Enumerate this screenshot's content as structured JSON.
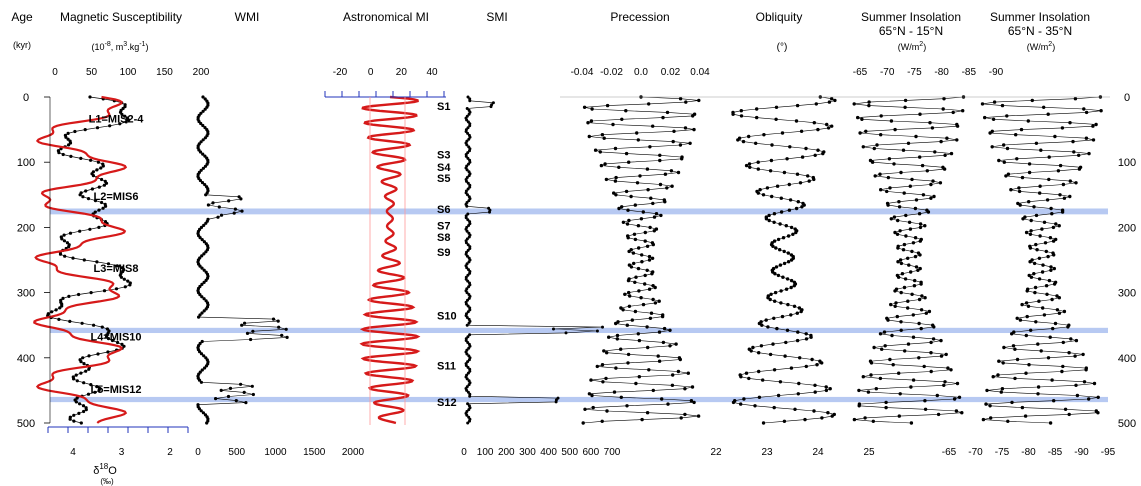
{
  "figure": {
    "age_label": "Age",
    "age_unit": "(kyr)",
    "age_ticks": [
      "0",
      "100",
      "200",
      "300",
      "400",
      "500"
    ],
    "band_color": "#aabff0",
    "red_color": "#d61a1a",
    "axis_blue": "#2233bb"
  },
  "chart_data": [
    {
      "type": "line",
      "title": "Magnetic Susceptibility",
      "unit_text": "(10",
      "unit_exp": "-8",
      "unit_rest": ", m",
      "unit_exp2": "3",
      "unit_tail": ".kg",
      "unit_exp3": "-1",
      "unit_close": ")",
      "top_ticks": [
        "0",
        "50",
        "100",
        "150",
        "200"
      ],
      "bottom_ticks": [
        "4",
        "3",
        "2"
      ],
      "bottom_label": "δ",
      "bottom_label_sup": "18",
      "bottom_label_tail": "O",
      "bottom_unit": "(‰)",
      "series": [
        {
          "name": "Magnetic Susceptibility",
          "color": "#000000"
        },
        {
          "name": "δ18O",
          "color": "#d61a1a"
        }
      ],
      "ylim": [
        0,
        500
      ],
      "loess_labels": [
        {
          "text": "L1=MIS2-4",
          "age": 33
        },
        {
          "text": "L2=MIS6",
          "age": 152
        },
        {
          "text": "L3=MIS8",
          "age": 262
        },
        {
          "text": "L4=MIS10",
          "age": 367
        },
        {
          "text": "L5=MIS12",
          "age": 448
        }
      ]
    },
    {
      "type": "line",
      "title": "WMI",
      "bottom_ticks": [
        "0",
        "500",
        "1000",
        "1500",
        "2000"
      ],
      "xlim": [
        0,
        2000
      ],
      "ylim": [
        0,
        500
      ]
    },
    {
      "type": "area",
      "title": "Astronomical MI",
      "top_ticks": [
        "-20",
        "0",
        "20",
        "40"
      ],
      "xlim": [
        -30,
        45
      ],
      "ylim": [
        0,
        500
      ]
    },
    {
      "type": "line",
      "title": "SMI",
      "bottom_ticks": [
        "0",
        "100",
        "200",
        "300",
        "400",
        "500",
        "600",
        "700"
      ],
      "xlim": [
        0,
        700
      ],
      "ylim": [
        0,
        500
      ],
      "soil_labels": [
        {
          "text": "S1",
          "age": 14
        },
        {
          "text": "S3",
          "age": 88
        },
        {
          "text": "S4",
          "age": 107
        },
        {
          "text": "S5",
          "age": 124
        },
        {
          "text": "S6",
          "age": 172
        },
        {
          "text": "S7",
          "age": 197
        },
        {
          "text": "S8",
          "age": 215
        },
        {
          "text": "S9",
          "age": 238
        },
        {
          "text": "S10",
          "age": 335
        },
        {
          "text": "S11",
          "age": 412
        },
        {
          "text": "S12",
          "age": 468
        }
      ]
    },
    {
      "type": "scatter",
      "title": "Precession",
      "top_ticks": [
        "-0.04",
        "-0.02",
        "0.0",
        "0.02",
        "0.04"
      ],
      "xlim": [
        -0.05,
        0.05
      ],
      "ylim": [
        0,
        500
      ]
    },
    {
      "type": "scatter",
      "title": "Obliquity",
      "unit": "(°)",
      "bottom_ticks": [
        "22",
        "23",
        "24",
        "25"
      ],
      "xlim": [
        22,
        25
      ],
      "ylim": [
        0,
        500
      ]
    },
    {
      "type": "scatter",
      "title": "Summer Insolation",
      "subtitle": "65°N - 15°N",
      "unit": "(W/m",
      "unit_exp": "2",
      "unit_close": ")",
      "top_ticks": [
        "-65",
        "-70",
        "-75",
        "-80",
        "-85",
        "-90"
      ],
      "ylim": [
        0,
        500
      ]
    },
    {
      "type": "scatter",
      "title": "Summer Insolation",
      "subtitle": "65°N - 35°N",
      "unit": "(W/m",
      "unit_exp": "2",
      "unit_close": ")",
      "bottom_ticks": [
        "-65",
        "-70",
        "-75",
        "-80",
        "-85",
        "-90",
        "-95"
      ],
      "ylim": [
        0,
        500
      ]
    }
  ],
  "highlight_bands": [
    {
      "from": 171,
      "to": 180
    },
    {
      "from": 354,
      "to": 362
    },
    {
      "from": 460,
      "to": 468
    }
  ]
}
